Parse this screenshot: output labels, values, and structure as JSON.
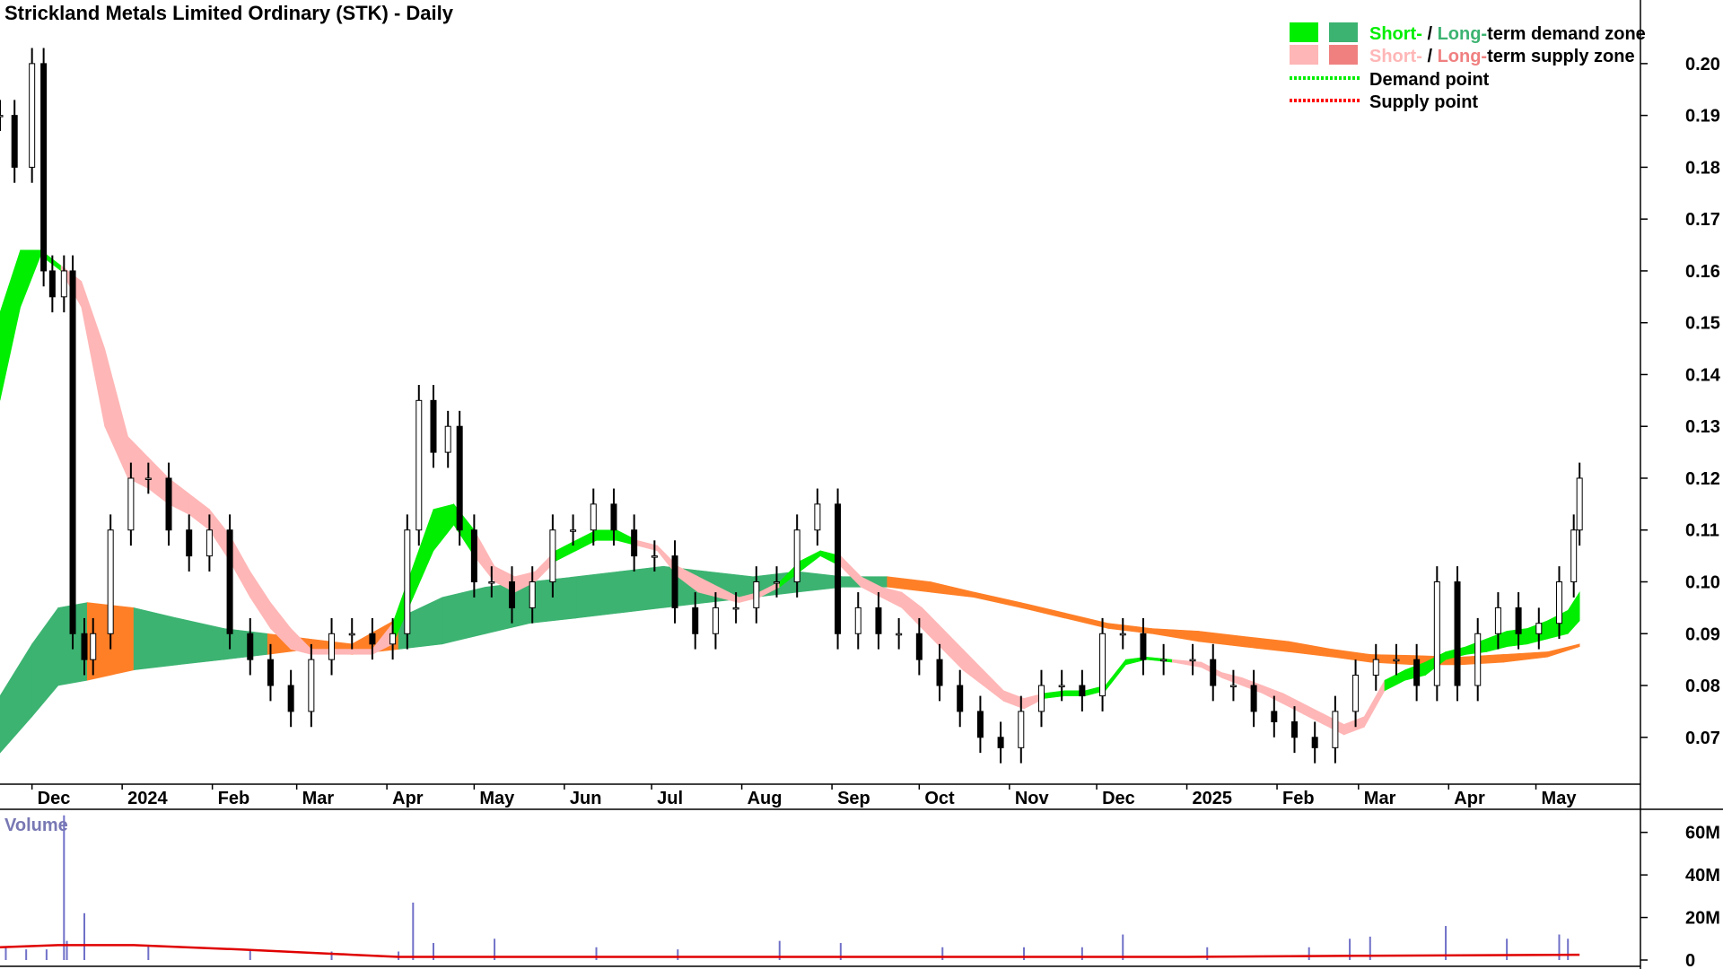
{
  "chart_data": {
    "type": "candlestick",
    "title": "Strickland Metals Limited Ordinary (STK) - Daily",
    "price_axis": {
      "ticks": [
        "0.20",
        "0.19",
        "0.18",
        "0.17",
        "0.16",
        "0.15",
        "0.14",
        "0.13",
        "0.12",
        "0.11",
        "0.10",
        "0.09",
        "0.08",
        "0.07"
      ],
      "range": [
        0.062,
        0.205
      ],
      "position": "right",
      "grid": false
    },
    "x_axis": {
      "labels": [
        "Dec",
        "2024",
        "Feb",
        "Mar",
        "Apr",
        "May",
        "Jun",
        "Jul",
        "Aug",
        "Sep",
        "Oct",
        "Nov",
        "Dec",
        "2025",
        "Feb",
        "Mar",
        "Apr",
        "May"
      ],
      "label_dates": [
        "2023-12-01",
        "2024-01-01",
        "2024-02-01",
        "2024-03-01",
        "2024-04-01",
        "2024-05-01",
        "2024-06-01",
        "2024-07-01",
        "2024-08-01",
        "2024-09-01",
        "2024-10-01",
        "2024-11-01",
        "2024-12-01",
        "2025-01-01",
        "2025-02-01",
        "2025-03-01",
        "2025-04-01",
        "2025-05-01"
      ],
      "range": [
        "2023-11-20",
        "2025-06-05"
      ]
    },
    "legend": {
      "placement": "top-right",
      "entries": [
        {
          "part1": "Short-",
          "sep": " / ",
          "part2": "Long-",
          "suffix": "term demand zone",
          "color1": "#00ee00",
          "color2": "#3cb371",
          "text1_color": "#00ee00",
          "text2_color": "#3cb371"
        },
        {
          "part1": "Short-",
          "sep": " / ",
          "part2": "Long-",
          "suffix": "term supply zone",
          "color1": "#ffb6b6",
          "color2": "#f08080",
          "text1_color": "#ffb6b6",
          "text2_color": "#f08080"
        },
        {
          "label": "Demand point",
          "color": "#00ee00",
          "dotted": true
        },
        {
          "label": "Supply point",
          "color": "#ff0000",
          "dotted": true
        }
      ]
    },
    "price_series": {
      "dates": [
        "2023-11-20",
        "2023-11-25",
        "2023-12-01",
        "2023-12-05",
        "2023-12-08",
        "2023-12-12",
        "2023-12-15",
        "2023-12-19",
        "2023-12-22",
        "2023-12-28",
        "2024-01-04",
        "2024-01-10",
        "2024-01-17",
        "2024-01-24",
        "2024-01-31",
        "2024-02-07",
        "2024-02-14",
        "2024-02-21",
        "2024-02-28",
        "2024-03-06",
        "2024-03-13",
        "2024-03-20",
        "2024-03-27",
        "2024-04-03",
        "2024-04-08",
        "2024-04-12",
        "2024-04-17",
        "2024-04-22",
        "2024-04-26",
        "2024-05-01",
        "2024-05-07",
        "2024-05-14",
        "2024-05-21",
        "2024-05-28",
        "2024-06-04",
        "2024-06-11",
        "2024-06-18",
        "2024-06-25",
        "2024-07-02",
        "2024-07-09",
        "2024-07-16",
        "2024-07-23",
        "2024-07-30",
        "2024-08-06",
        "2024-08-13",
        "2024-08-20",
        "2024-08-27",
        "2024-09-03",
        "2024-09-10",
        "2024-09-17",
        "2024-09-24",
        "2024-10-01",
        "2024-10-08",
        "2024-10-15",
        "2024-10-22",
        "2024-10-29",
        "2024-11-05",
        "2024-11-12",
        "2024-11-19",
        "2024-11-26",
        "2024-12-03",
        "2024-12-10",
        "2024-12-17",
        "2024-12-24",
        "2025-01-03",
        "2025-01-10",
        "2025-01-17",
        "2025-01-24",
        "2025-01-31",
        "2025-02-07",
        "2025-02-14",
        "2025-02-21",
        "2025-02-28",
        "2025-03-07",
        "2025-03-14",
        "2025-03-21",
        "2025-03-28",
        "2025-04-04",
        "2025-04-11",
        "2025-04-18",
        "2025-04-25",
        "2025-05-02",
        "2025-05-09",
        "2025-05-14",
        "2025-05-16"
      ],
      "close": [
        0.19,
        0.18,
        0.2,
        0.16,
        0.155,
        0.16,
        0.09,
        0.085,
        0.09,
        0.11,
        0.12,
        0.12,
        0.11,
        0.105,
        0.11,
        0.09,
        0.085,
        0.08,
        0.075,
        0.085,
        0.09,
        0.09,
        0.088,
        0.09,
        0.11,
        0.135,
        0.125,
        0.13,
        0.11,
        0.1,
        0.1,
        0.095,
        0.1,
        0.11,
        0.11,
        0.115,
        0.11,
        0.105,
        0.105,
        0.095,
        0.09,
        0.095,
        0.095,
        0.1,
        0.1,
        0.11,
        0.115,
        0.09,
        0.095,
        0.09,
        0.09,
        0.085,
        0.08,
        0.075,
        0.07,
        0.068,
        0.075,
        0.08,
        0.08,
        0.078,
        0.09,
        0.09,
        0.085,
        0.085,
        0.085,
        0.08,
        0.08,
        0.075,
        0.073,
        0.07,
        0.068,
        0.075,
        0.082,
        0.085,
        0.085,
        0.08,
        0.1,
        0.08,
        0.09,
        0.095,
        0.09,
        0.092,
        0.1,
        0.11,
        0.12
      ]
    },
    "zones": {
      "short_term": {
        "dates": [
          "2023-11-20",
          "2023-11-27",
          "2023-12-04",
          "2023-12-11",
          "2023-12-18",
          "2023-12-26",
          "2024-01-03",
          "2024-01-10",
          "2024-01-17",
          "2024-01-24",
          "2024-01-31",
          "2024-02-07",
          "2024-02-14",
          "2024-02-21",
          "2024-02-28",
          "2024-03-06",
          "2024-03-13",
          "2024-03-20",
          "2024-03-27",
          "2024-04-03",
          "2024-04-10",
          "2024-04-17",
          "2024-04-24",
          "2024-05-01",
          "2024-05-08",
          "2024-05-15",
          "2024-05-22",
          "2024-05-29",
          "2024-06-05",
          "2024-06-12",
          "2024-06-19",
          "2024-06-26",
          "2024-07-03",
          "2024-07-10",
          "2024-07-17",
          "2024-07-24",
          "2024-07-31",
          "2024-08-07",
          "2024-08-14",
          "2024-08-21",
          "2024-08-28",
          "2024-09-04",
          "2024-09-11",
          "2024-09-18",
          "2024-09-25",
          "2024-10-02",
          "2024-10-09",
          "2024-10-16",
          "2024-10-23",
          "2024-10-30",
          "2024-11-06",
          "2024-11-13",
          "2024-11-20",
          "2024-11-27",
          "2024-12-04",
          "2024-12-11",
          "2024-12-18",
          "2024-12-27",
          "2025-01-06",
          "2025-01-13",
          "2025-01-20",
          "2025-01-27",
          "2025-02-03",
          "2025-02-10",
          "2025-02-17",
          "2025-02-24",
          "2025-03-03",
          "2025-03-10",
          "2025-03-17",
          "2025-03-24",
          "2025-03-31",
          "2025-04-07",
          "2025-04-14",
          "2025-04-21",
          "2025-04-28",
          "2025-05-05",
          "2025-05-12",
          "2025-05-16"
        ],
        "lower": [
          0.135,
          0.153,
          0.163,
          0.16,
          0.153,
          0.13,
          0.12,
          0.118,
          0.115,
          0.113,
          0.11,
          0.104,
          0.097,
          0.091,
          0.087,
          0.086,
          0.086,
          0.086,
          0.086,
          0.088,
          0.097,
          0.106,
          0.111,
          0.105,
          0.1,
          0.098,
          0.1,
          0.104,
          0.106,
          0.108,
          0.108,
          0.107,
          0.106,
          0.101,
          0.098,
          0.097,
          0.096,
          0.097,
          0.099,
          0.102,
          0.105,
          0.103,
          0.099,
          0.097,
          0.095,
          0.091,
          0.087,
          0.083,
          0.08,
          0.077,
          0.0755,
          0.0775,
          0.078,
          0.078,
          0.079,
          0.084,
          0.085,
          0.0845,
          0.0835,
          0.0815,
          0.08,
          0.0785,
          0.0765,
          0.0745,
          0.0725,
          0.0705,
          0.072,
          0.079,
          0.081,
          0.082,
          0.085,
          0.086,
          0.0865,
          0.0875,
          0.088,
          0.089,
          0.09,
          0.0925
        ],
        "upper": [
          0.152,
          0.164,
          0.164,
          0.161,
          0.158,
          0.145,
          0.128,
          0.124,
          0.12,
          0.117,
          0.114,
          0.109,
          0.102,
          0.096,
          0.091,
          0.087,
          0.087,
          0.087,
          0.087,
          0.092,
          0.103,
          0.114,
          0.115,
          0.11,
          0.103,
          0.101,
          0.102,
          0.106,
          0.108,
          0.11,
          0.11,
          0.108,
          0.107,
          0.103,
          0.101,
          0.099,
          0.097,
          0.098,
          0.1,
          0.104,
          0.106,
          0.105,
          0.101,
          0.099,
          0.098,
          0.095,
          0.091,
          0.087,
          0.083,
          0.079,
          0.0775,
          0.0785,
          0.079,
          0.079,
          0.08,
          0.085,
          0.0855,
          0.085,
          0.0845,
          0.0825,
          0.0815,
          0.08,
          0.0785,
          0.0765,
          0.0745,
          0.0725,
          0.074,
          0.081,
          0.083,
          0.0845,
          0.0865,
          0.0875,
          0.089,
          0.0905,
          0.091,
          0.0925,
          0.0945,
          0.098
        ],
        "mode": [
          "demand",
          "demand",
          "demand",
          "supply",
          "supply",
          "supply",
          "supply",
          "supply",
          "supply",
          "supply",
          "supply",
          "supply",
          "supply",
          "supply",
          "supply",
          "supply",
          "supply",
          "supply",
          "supply",
          "demand",
          "demand",
          "demand",
          "demand",
          "supply",
          "supply",
          "supply",
          "supply",
          "demand",
          "demand",
          "demand",
          "demand",
          "supply",
          "supply",
          "supply",
          "supply",
          "supply",
          "supply",
          "supply",
          "demand",
          "demand",
          "demand",
          "supply",
          "supply",
          "supply",
          "supply",
          "supply",
          "supply",
          "supply",
          "supply",
          "supply",
          "supply",
          "demand",
          "demand",
          "demand",
          "demand",
          "demand",
          "demand",
          "supply",
          "supply",
          "supply",
          "supply",
          "supply",
          "supply",
          "supply",
          "supply",
          "supply",
          "supply",
          "demand",
          "demand",
          "demand",
          "demand",
          "demand",
          "demand",
          "demand",
          "demand",
          "demand",
          "demand",
          "demand"
        ]
      },
      "long_term": {
        "dates": [
          "2023-11-20",
          "2023-12-01",
          "2023-12-10",
          "2023-12-20",
          "2024-01-05",
          "2024-01-20",
          "2024-02-05",
          "2024-02-20",
          "2024-03-05",
          "2024-03-20",
          "2024-04-05",
          "2024-04-20",
          "2024-05-05",
          "2024-05-20",
          "2024-06-05",
          "2024-06-20",
          "2024-07-05",
          "2024-07-20",
          "2024-08-05",
          "2024-08-20",
          "2024-09-05",
          "2024-09-20",
          "2024-10-05",
          "2024-10-20",
          "2024-11-05",
          "2024-11-20",
          "2024-12-05",
          "2024-12-20",
          "2025-01-05",
          "2025-01-20",
          "2025-02-05",
          "2025-02-20",
          "2025-03-05",
          "2025-03-20",
          "2025-04-05",
          "2025-04-20",
          "2025-05-05",
          "2025-05-16"
        ],
        "lower": [
          0.067,
          0.074,
          0.08,
          0.081,
          0.083,
          0.084,
          0.085,
          0.086,
          0.087,
          0.086,
          0.087,
          0.088,
          0.09,
          0.092,
          0.093,
          0.094,
          0.095,
          0.096,
          0.097,
          0.098,
          0.099,
          0.099,
          0.098,
          0.097,
          0.095,
          0.093,
          0.091,
          0.09,
          0.0885,
          0.0875,
          0.0865,
          0.0855,
          0.0845,
          0.084,
          0.084,
          0.0845,
          0.0855,
          0.0875
        ],
        "upper": [
          0.078,
          0.088,
          0.095,
          0.096,
          0.095,
          0.093,
          0.091,
          0.09,
          0.089,
          0.088,
          0.093,
          0.097,
          0.099,
          0.1,
          0.101,
          0.102,
          0.103,
          0.102,
          0.101,
          0.102,
          0.101,
          0.101,
          0.1,
          0.098,
          0.096,
          0.094,
          0.092,
          0.091,
          0.0905,
          0.0895,
          0.0885,
          0.087,
          0.086,
          0.0858,
          0.0855,
          0.086,
          0.0865,
          0.088
        ],
        "mode": [
          "demand",
          "demand",
          "demand",
          "supply",
          "demand",
          "demand",
          "demand",
          "supply",
          "supply",
          "supply",
          "demand",
          "demand",
          "demand",
          "demand",
          "demand",
          "demand",
          "demand",
          "demand",
          "demand",
          "demand",
          "demand",
          "supply",
          "supply",
          "supply",
          "supply",
          "supply",
          "supply",
          "supply",
          "supply",
          "supply",
          "supply",
          "supply",
          "supply",
          "supply",
          "supply",
          "supply",
          "supply",
          "supply"
        ]
      }
    },
    "volume": {
      "label": "Volume",
      "ticks": [
        "60M",
        "40M",
        "20M",
        "0"
      ],
      "range": [
        0,
        70
      ],
      "unit": "M",
      "bars": {
        "dates": [
          "2023-11-22",
          "2023-11-29",
          "2023-12-06",
          "2023-12-12",
          "2023-12-13",
          "2023-12-19",
          "2024-01-10",
          "2024-02-14",
          "2024-03-13",
          "2024-04-05",
          "2024-04-10",
          "2024-04-17",
          "2024-05-08",
          "2024-06-12",
          "2024-07-10",
          "2024-08-14",
          "2024-09-04",
          "2024-10-09",
          "2024-11-06",
          "2024-11-26",
          "2024-12-10",
          "2025-01-08",
          "2025-02-12",
          "2025-02-26",
          "2025-03-05",
          "2025-03-31",
          "2025-04-21",
          "2025-05-09",
          "2025-05-12"
        ],
        "values": [
          6,
          5,
          5,
          68,
          9,
          22,
          7,
          5,
          4,
          4,
          27,
          8,
          10,
          6,
          5,
          9,
          8,
          6,
          6,
          6,
          12,
          6,
          6,
          10,
          11,
          16,
          10,
          12,
          10
        ]
      },
      "average": {
        "dates": [
          "2023-11-20",
          "2023-12-10",
          "2024-01-05",
          "2024-02-10",
          "2024-03-20",
          "2024-04-05",
          "2024-06-01",
          "2025-01-01",
          "2025-03-01",
          "2025-05-16"
        ],
        "values": [
          6,
          7,
          7,
          5,
          2.5,
          1.5,
          1.5,
          1.5,
          2,
          2.5
        ]
      }
    }
  }
}
